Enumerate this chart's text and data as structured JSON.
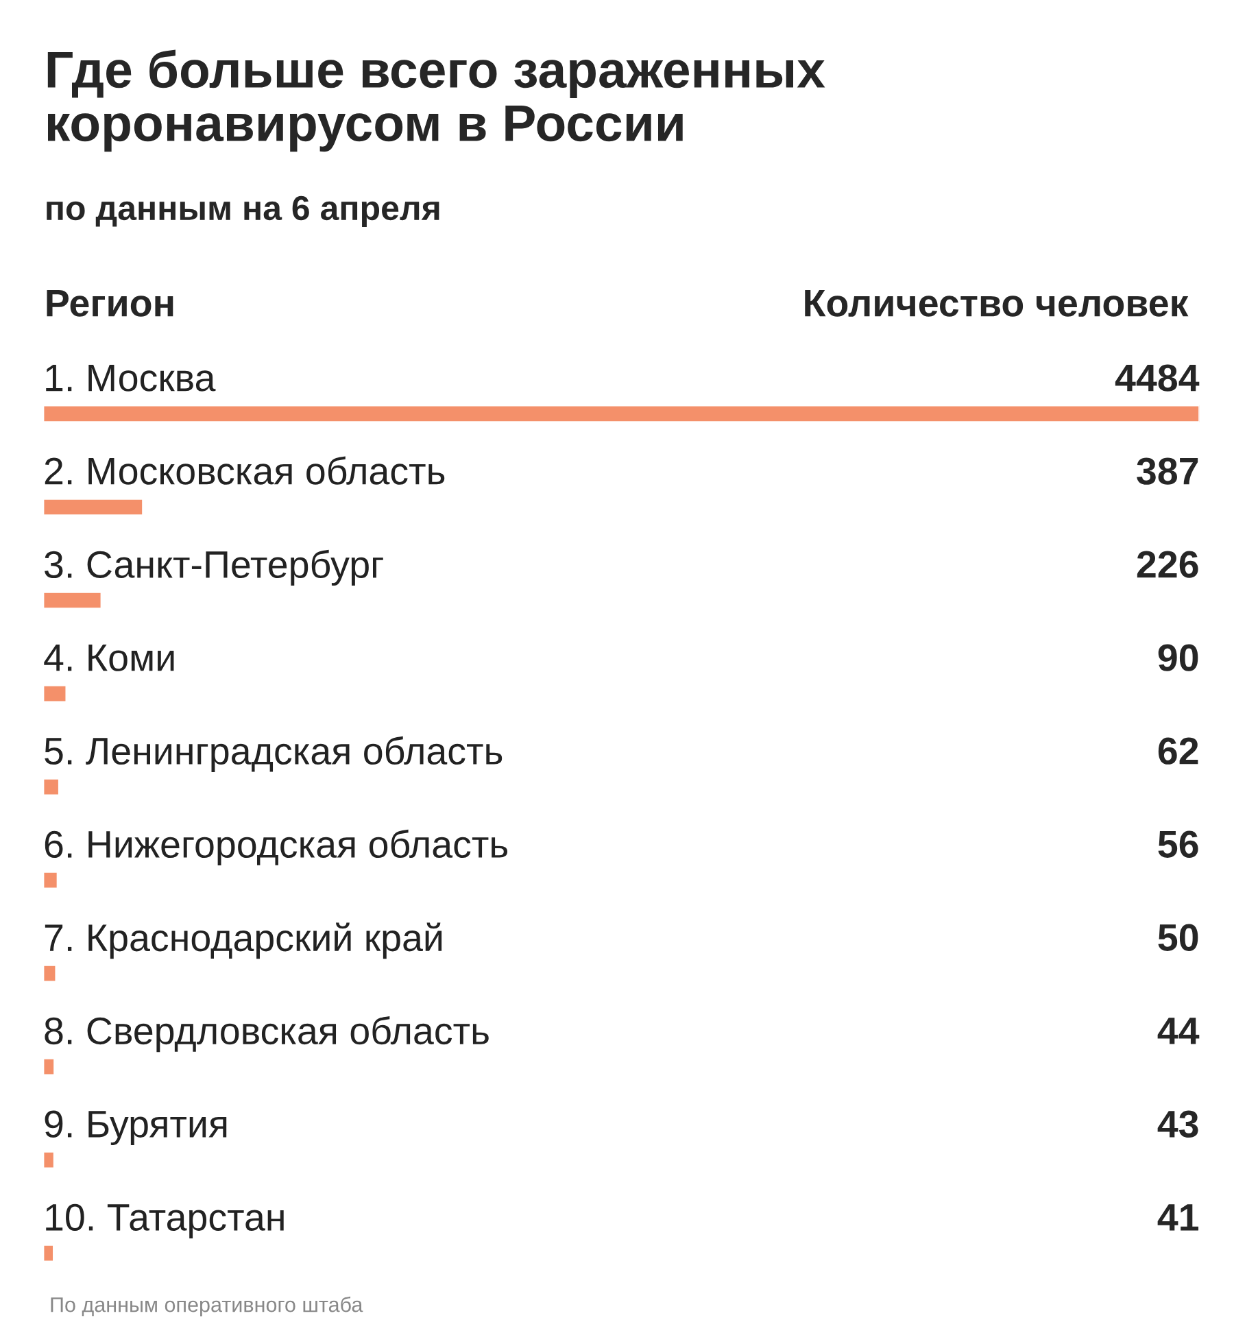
{
  "chart_data": {
    "type": "bar",
    "orientation": "horizontal",
    "title": "Где больше всего зараженных\nкоронавирусом в России",
    "subtitle": "по данным на 6 апреля",
    "ylabel": "Регион",
    "xlabel": "Количество человек",
    "categories": [
      "1. Москва",
      "2. Московская область",
      "3. Санкт-Петербург",
      "4. Коми",
      "5. Ленинградская область",
      "6. Нижегородская область",
      "7. Краснодарский край",
      "8. Свердловская область",
      "9. Бурятия",
      "10. Татарстан"
    ],
    "values": [
      4484,
      387,
      226,
      90,
      62,
      56,
      50,
      44,
      43,
      41
    ],
    "color": "#f4906a",
    "data_labels": true,
    "annotations": [
      "По данным оперативного штаба"
    ]
  }
}
